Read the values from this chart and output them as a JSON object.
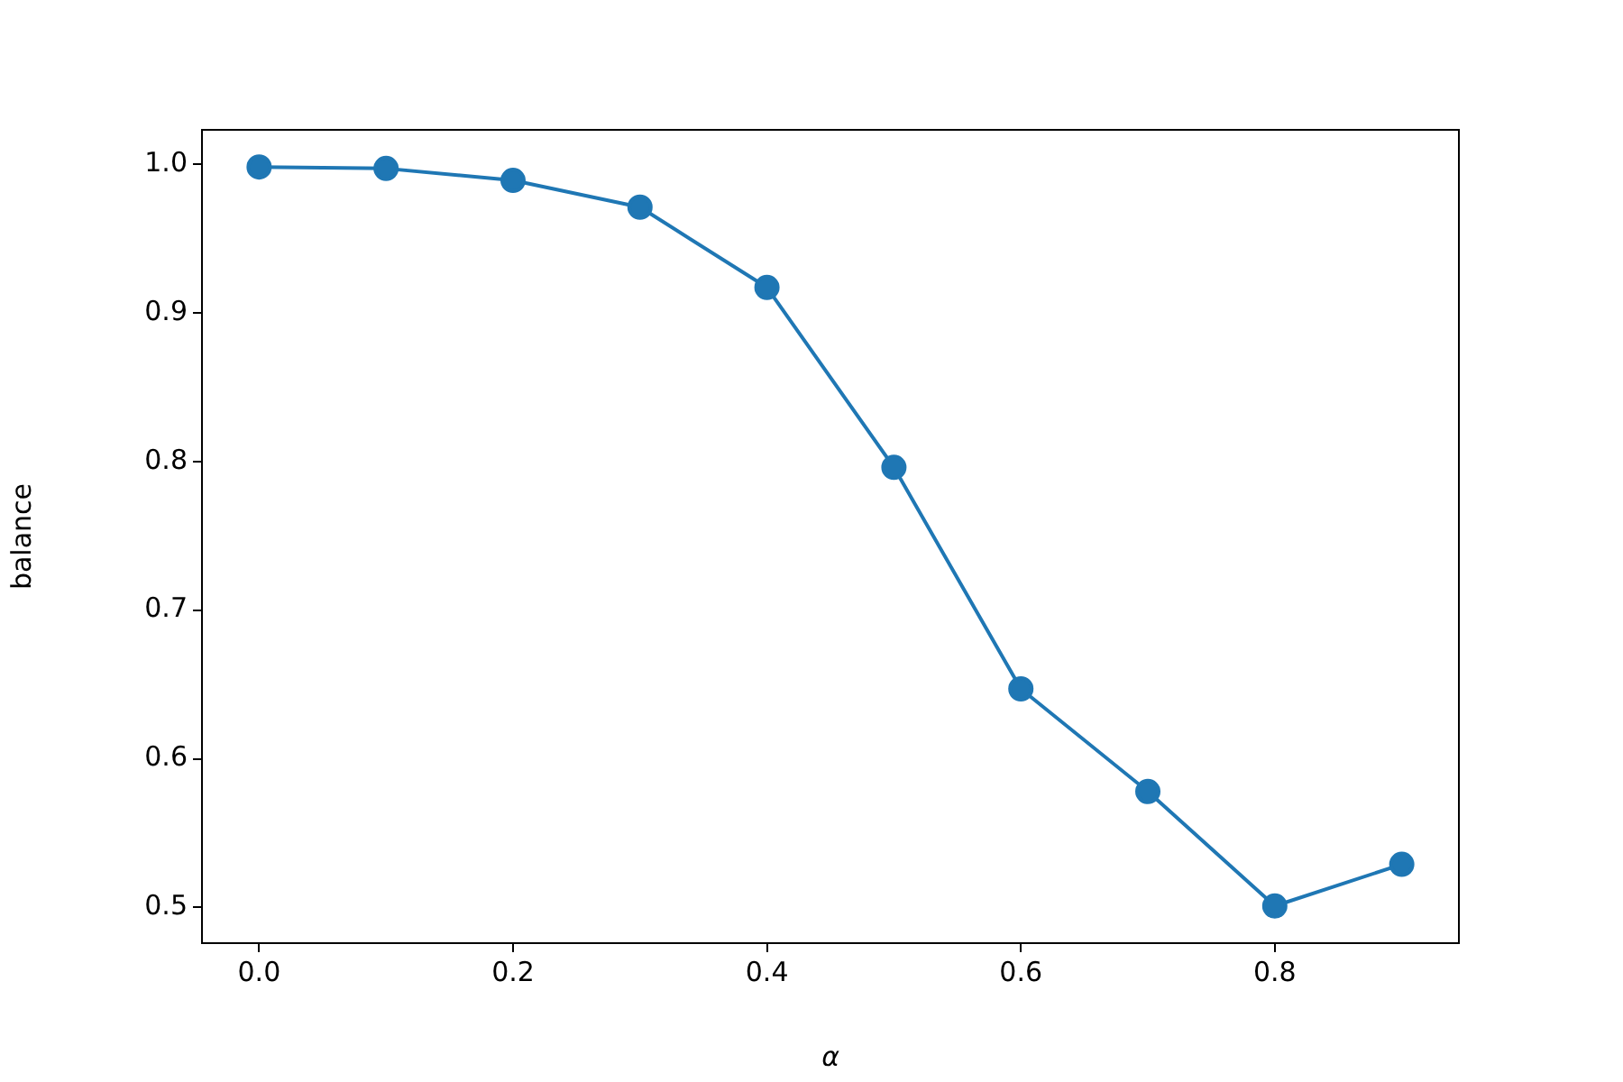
{
  "chart_data": {
    "type": "line",
    "xlabel": "α",
    "ylabel": "balance",
    "x": [
      0.0,
      0.1,
      0.2,
      0.3,
      0.4,
      0.5,
      0.6,
      0.7,
      0.8,
      0.9
    ],
    "series": [
      {
        "color": "#1f77b4",
        "values": [
          0.998,
          0.997,
          0.989,
          0.971,
          0.917,
          0.796,
          0.647,
          0.578,
          0.501,
          0.529
        ]
      }
    ],
    "xlim": [
      -0.045,
      0.945
    ],
    "xticks": [
      {
        "value": 0,
        "label": "0.0"
      },
      0.2,
      0.4,
      0.6,
      0.8
    ],
    "ylim": [
      0.476,
      1.023
    ],
    "yticks": [
      0.5,
      0.6,
      0.7,
      0.8,
      0.9,
      {
        "value": 1,
        "label": "1.0"
      }
    ],
    "marker": "circle",
    "line_style": "solid",
    "grid": false,
    "legend": false
  }
}
